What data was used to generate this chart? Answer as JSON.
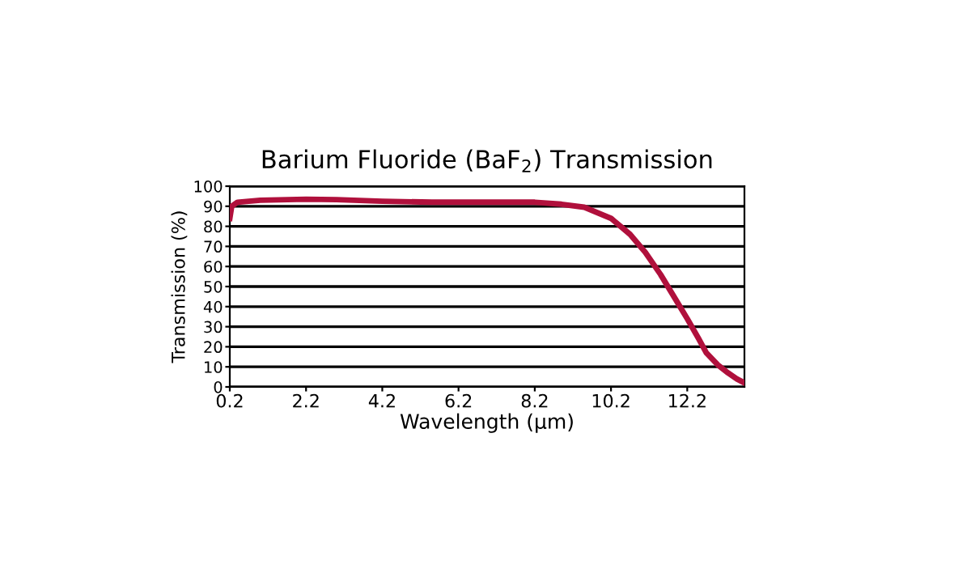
{
  "chart_data": {
    "type": "line",
    "title": "Barium Fluoride (BaF$_{2}$) Transmission",
    "xlabel": "Wavelength (µm)",
    "ylabel": "Transmission (%)",
    "x": [
      0.2,
      0.25,
      0.4,
      1.0,
      2.2,
      3.0,
      4.2,
      5.5,
      6.2,
      7.5,
      8.2,
      8.9,
      9.5,
      10.2,
      10.7,
      11.1,
      11.5,
      11.85,
      12.2,
      12.5,
      12.7,
      13.0,
      13.27,
      13.5,
      13.7
    ],
    "series": [
      {
        "color": "#b0103c",
        "values": [
          84,
          90,
          92,
          93,
          93.5,
          93.3,
          92.5,
          92,
          92,
          92,
          92,
          91,
          89.5,
          84,
          76,
          67,
          56,
          45,
          34,
          24,
          17,
          11,
          7,
          4,
          2
        ]
      }
    ],
    "xlim": [
      0.2,
      13.7
    ],
    "xticks": [
      0.2,
      2.2,
      4.2,
      6.2,
      8.2,
      10.2,
      12.2
    ],
    "ylim": [
      0,
      100
    ],
    "yticks": [
      0,
      10,
      20,
      30,
      40,
      50,
      60,
      70,
      80,
      90,
      100
    ],
    "grid": "y",
    "marker": "none",
    "line_style": "solid"
  }
}
